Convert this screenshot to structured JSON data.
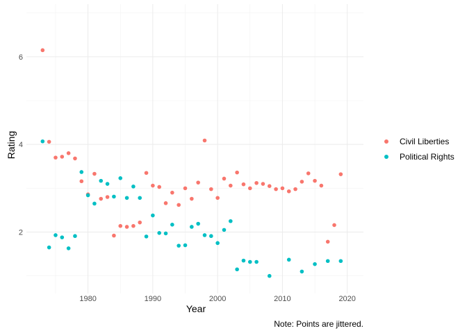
{
  "chart_data": {
    "type": "scatter",
    "xlabel": "Year",
    "ylabel": "Rating",
    "xlim": [
      1970.5,
      2022.5
    ],
    "ylim": [
      0.6,
      7.2
    ],
    "x_ticks": [
      1980,
      1990,
      2000,
      2010,
      2020
    ],
    "y_ticks": [
      2,
      4,
      6
    ],
    "x_minor_ticks": [
      1975,
      1985,
      1995,
      2005,
      2015
    ],
    "y_minor_ticks": [
      1,
      3,
      5,
      7
    ],
    "grid": true,
    "legend_position": "right",
    "caption": "Note: Points are jittered.",
    "series": [
      {
        "name": "Civil Liberties",
        "color": "#F8766D",
        "points": [
          [
            1973,
            6.15
          ],
          [
            1974,
            4.06
          ],
          [
            1975,
            3.7
          ],
          [
            1976,
            3.72
          ],
          [
            1977,
            3.8
          ],
          [
            1978,
            3.68
          ],
          [
            1979,
            3.16
          ],
          [
            1980,
            2.86
          ],
          [
            1981,
            3.33
          ],
          [
            1982,
            2.76
          ],
          [
            1983,
            2.8
          ],
          [
            1984,
            1.92
          ],
          [
            1985,
            2.14
          ],
          [
            1986,
            2.12
          ],
          [
            1987,
            2.14
          ],
          [
            1988,
            2.22
          ],
          [
            1989,
            3.35
          ],
          [
            1990,
            3.06
          ],
          [
            1991,
            3.03
          ],
          [
            1992,
            2.66
          ],
          [
            1993,
            2.9
          ],
          [
            1994,
            2.62
          ],
          [
            1995,
            3.0
          ],
          [
            1996,
            2.76
          ],
          [
            1997,
            3.13
          ],
          [
            1998,
            4.09
          ],
          [
            1999,
            2.98
          ],
          [
            2000,
            2.78
          ],
          [
            2001,
            3.22
          ],
          [
            2002,
            3.06
          ],
          [
            2003,
            3.36
          ],
          [
            2004,
            3.09
          ],
          [
            2005,
            3.0
          ],
          [
            2006,
            3.12
          ],
          [
            2007,
            3.1
          ],
          [
            2008,
            3.05
          ],
          [
            2009,
            2.98
          ],
          [
            2010,
            3.0
          ],
          [
            2011,
            2.93
          ],
          [
            2012,
            2.98
          ],
          [
            2013,
            3.15
          ],
          [
            2014,
            3.34
          ],
          [
            2015,
            3.17
          ],
          [
            2016,
            3.06
          ],
          [
            2017,
            1.78
          ],
          [
            2018,
            2.16
          ],
          [
            2019,
            3.32
          ]
        ]
      },
      {
        "name": "Political Rights",
        "color": "#00BFC4",
        "points": [
          [
            1973,
            4.07
          ],
          [
            1974,
            1.65
          ],
          [
            1975,
            1.93
          ],
          [
            1976,
            1.88
          ],
          [
            1977,
            1.63
          ],
          [
            1978,
            1.91
          ],
          [
            1979,
            3.37
          ],
          [
            1980,
            2.84
          ],
          [
            1981,
            2.65
          ],
          [
            1982,
            3.17
          ],
          [
            1983,
            3.1
          ],
          [
            1984,
            2.81
          ],
          [
            1985,
            3.23
          ],
          [
            1986,
            2.78
          ],
          [
            1987,
            3.04
          ],
          [
            1988,
            2.78
          ],
          [
            1989,
            1.9
          ],
          [
            1990,
            2.38
          ],
          [
            1991,
            1.98
          ],
          [
            1992,
            1.97
          ],
          [
            1993,
            2.17
          ],
          [
            1994,
            1.69
          ],
          [
            1995,
            1.7
          ],
          [
            1996,
            2.12
          ],
          [
            1997,
            2.19
          ],
          [
            1998,
            1.93
          ],
          [
            1999,
            1.91
          ],
          [
            2000,
            1.75
          ],
          [
            2001,
            2.05
          ],
          [
            2002,
            2.25
          ],
          [
            2003,
            1.15
          ],
          [
            2004,
            1.35
          ],
          [
            2005,
            1.32
          ],
          [
            2006,
            1.32
          ],
          [
            2008,
            1.0
          ],
          [
            2011,
            1.37
          ],
          [
            2013,
            1.1
          ],
          [
            2015,
            1.27
          ],
          [
            2017,
            1.34
          ],
          [
            2019,
            1.34
          ]
        ]
      }
    ]
  }
}
